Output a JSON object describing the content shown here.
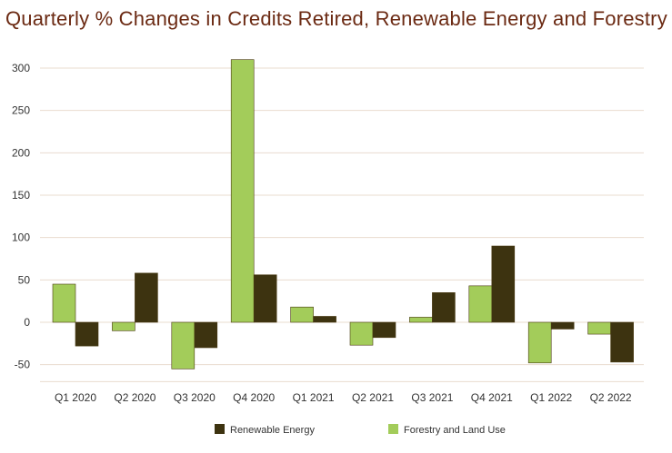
{
  "chart_data": {
    "type": "bar",
    "title": "Quarterly % Changes in Credits Retired, Renewable Energy and Forestry",
    "xlabel": "",
    "ylabel": "",
    "categories": [
      "Q1 2020",
      "Q2 2020",
      "Q3 2020",
      "Q4 2020",
      "Q1 2021",
      "Q2 2021",
      "Q3 2021",
      "Q4 2021",
      "Q1 2022",
      "Q2 2022"
    ],
    "series": [
      {
        "name": "Forestry and Land Use",
        "color": "#a3cc5a",
        "values": [
          45,
          -10,
          -55,
          310,
          18,
          -27,
          6,
          43,
          -48,
          -14
        ]
      },
      {
        "name": "Renewable Energy",
        "color": "#3d3310",
        "values": [
          -28,
          58,
          -30,
          56,
          7,
          -18,
          35,
          90,
          -8,
          -47
        ]
      }
    ],
    "legend_order": [
      "Renewable Energy",
      "Forestry and Land Use"
    ],
    "yticks": [
      300,
      250,
      200,
      150,
      100,
      50,
      0,
      -50
    ],
    "ylim": [
      -60,
      310
    ],
    "grid": true,
    "legend_position": "bottom"
  }
}
